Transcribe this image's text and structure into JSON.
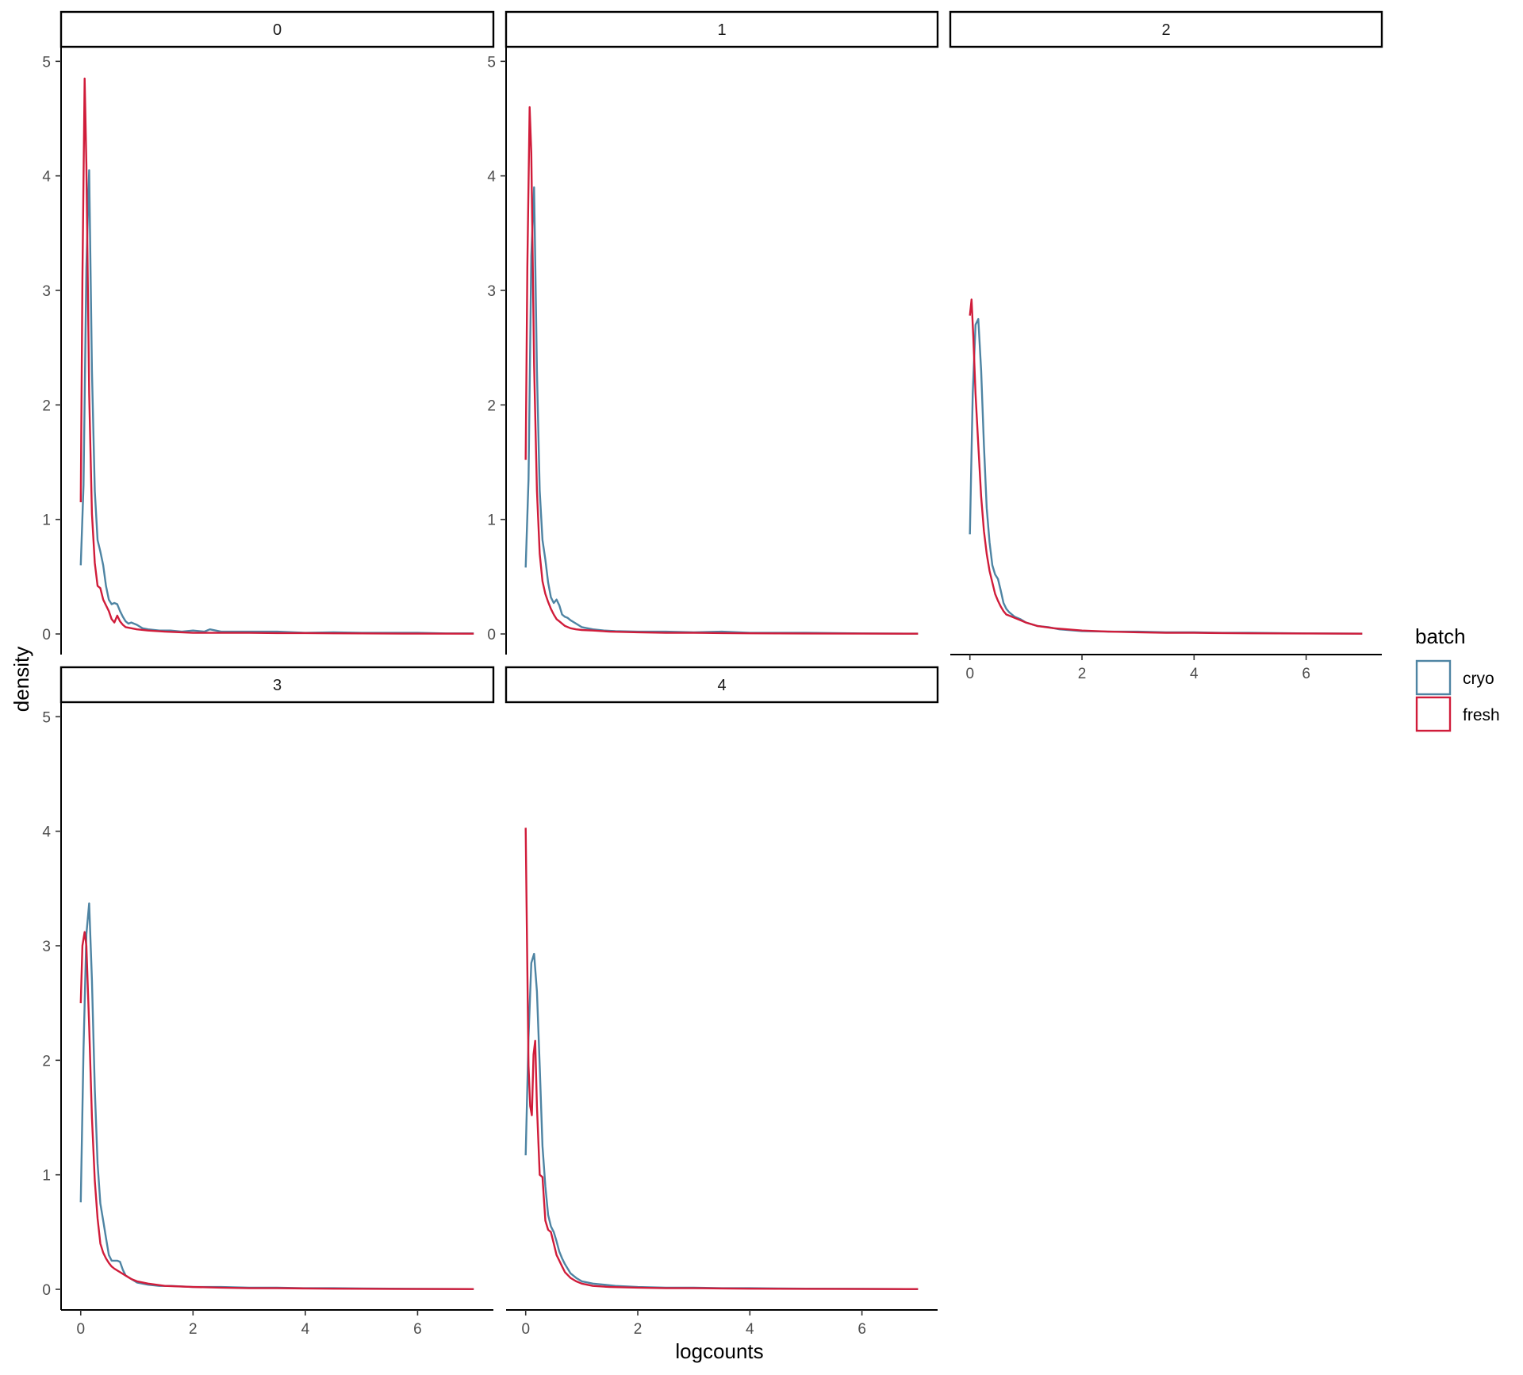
{
  "chart_data": {
    "type": "line",
    "subtype": "faceted-density",
    "xlabel": "logcounts",
    "ylabel": "density",
    "xlim": [
      -0.35,
      7.35
    ],
    "ylim": [
      -0.18,
      5.12
    ],
    "x_ticks": [
      0,
      2,
      4,
      6
    ],
    "y_ticks": [
      0,
      1,
      2,
      3,
      4,
      5
    ],
    "grid": false,
    "legend": {
      "title": "batch",
      "position": "right",
      "entries": [
        {
          "name": "cryo",
          "color": "#4e84a3"
        },
        {
          "name": "fresh",
          "color": "#d01c3a"
        }
      ]
    },
    "facets": [
      {
        "label": "0",
        "series": [
          {
            "name": "cryo",
            "x": [
              0,
              0.05,
              0.1,
              0.15,
              0.2,
              0.25,
              0.3,
              0.35,
              0.4,
              0.45,
              0.5,
              0.55,
              0.6,
              0.65,
              0.7,
              0.75,
              0.8,
              0.85,
              0.9,
              1.0,
              1.1,
              1.2,
              1.4,
              1.6,
              1.8,
              2.0,
              2.2,
              2.3,
              2.5,
              3,
              3.5,
              4,
              4.5,
              5,
              5.5,
              6,
              6.5,
              7
            ],
            "y": [
              0.6,
              1.3,
              3.2,
              4.05,
              2.3,
              1.25,
              0.82,
              0.72,
              0.6,
              0.42,
              0.3,
              0.26,
              0.27,
              0.26,
              0.2,
              0.15,
              0.11,
              0.09,
              0.1,
              0.08,
              0.05,
              0.04,
              0.03,
              0.03,
              0.02,
              0.03,
              0.02,
              0.04,
              0.02,
              0.02,
              0.02,
              0.01,
              0.015,
              0.01,
              0.01,
              0.01,
              0.005,
              0.005
            ]
          },
          {
            "name": "fresh",
            "x": [
              0,
              0.03,
              0.07,
              0.1,
              0.15,
              0.2,
              0.25,
              0.3,
              0.35,
              0.4,
              0.45,
              0.5,
              0.55,
              0.6,
              0.65,
              0.7,
              0.75,
              0.8,
              0.9,
              1.0,
              1.2,
              1.5,
              2,
              2.5,
              3,
              3.5,
              4,
              4.5,
              5,
              6,
              7
            ],
            "y": [
              1.15,
              3.1,
              4.85,
              4.1,
              2.1,
              1.05,
              0.62,
              0.42,
              0.4,
              0.3,
              0.25,
              0.2,
              0.13,
              0.1,
              0.16,
              0.11,
              0.08,
              0.06,
              0.05,
              0.04,
              0.03,
              0.02,
              0.01,
              0.01,
              0.01,
              0.008,
              0.008,
              0.006,
              0.005,
              0.003,
              0.002
            ]
          }
        ]
      },
      {
        "label": "1",
        "series": [
          {
            "name": "cryo",
            "x": [
              0,
              0.05,
              0.1,
              0.15,
              0.2,
              0.25,
              0.3,
              0.35,
              0.4,
              0.45,
              0.5,
              0.55,
              0.6,
              0.65,
              0.7,
              0.75,
              0.8,
              0.9,
              1.0,
              1.1,
              1.2,
              1.4,
              1.6,
              2.0,
              2.5,
              3,
              3.5,
              4,
              4.5,
              5,
              5.5,
              6,
              7
            ],
            "y": [
              0.58,
              1.35,
              3.3,
              3.9,
              2.3,
              1.25,
              0.82,
              0.65,
              0.45,
              0.32,
              0.27,
              0.3,
              0.25,
              0.17,
              0.15,
              0.14,
              0.12,
              0.09,
              0.06,
              0.05,
              0.04,
              0.03,
              0.025,
              0.02,
              0.02,
              0.015,
              0.02,
              0.01,
              0.01,
              0.01,
              0.008,
              0.005,
              0.003
            ]
          },
          {
            "name": "fresh",
            "x": [
              0,
              0.03,
              0.07,
              0.1,
              0.15,
              0.2,
              0.25,
              0.3,
              0.35,
              0.4,
              0.45,
              0.5,
              0.55,
              0.6,
              0.7,
              0.8,
              0.9,
              1.0,
              1.2,
              1.5,
              2,
              2.5,
              3,
              3.5,
              4,
              4.5,
              5,
              6,
              7
            ],
            "y": [
              1.52,
              3.2,
              4.6,
              4.2,
              2.35,
              1.25,
              0.7,
              0.46,
              0.35,
              0.28,
              0.22,
              0.17,
              0.13,
              0.11,
              0.07,
              0.05,
              0.04,
              0.035,
              0.03,
              0.02,
              0.015,
              0.01,
              0.01,
              0.008,
              0.006,
              0.005,
              0.004,
              0.003,
              0.002
            ]
          }
        ]
      },
      {
        "label": "2",
        "series": [
          {
            "name": "cryo",
            "x": [
              0,
              0.05,
              0.1,
              0.15,
              0.2,
              0.25,
              0.3,
              0.35,
              0.4,
              0.45,
              0.5,
              0.55,
              0.6,
              0.65,
              0.7,
              0.8,
              0.9,
              1.0,
              1.2,
              1.4,
              1.6,
              2.0,
              2.5,
              3,
              3.5,
              4,
              4.5,
              5,
              6,
              7
            ],
            "y": [
              0.87,
              2.1,
              2.7,
              2.75,
              2.3,
              1.65,
              1.1,
              0.8,
              0.6,
              0.52,
              0.48,
              0.38,
              0.27,
              0.22,
              0.19,
              0.15,
              0.13,
              0.1,
              0.07,
              0.06,
              0.04,
              0.025,
              0.02,
              0.02,
              0.015,
              0.015,
              0.01,
              0.01,
              0.005,
              0.003
            ]
          },
          {
            "name": "fresh",
            "x": [
              0,
              0.03,
              0.06,
              0.1,
              0.15,
              0.2,
              0.25,
              0.3,
              0.35,
              0.4,
              0.45,
              0.5,
              0.55,
              0.6,
              0.65,
              0.7,
              0.8,
              0.9,
              1.0,
              1.2,
              1.5,
              2,
              2.5,
              3,
              3.5,
              4,
              4.5,
              5,
              6,
              7
            ],
            "y": [
              2.78,
              2.92,
              2.6,
              2.1,
              1.65,
              1.2,
              0.9,
              0.7,
              0.55,
              0.45,
              0.35,
              0.29,
              0.24,
              0.2,
              0.17,
              0.16,
              0.14,
              0.12,
              0.1,
              0.07,
              0.05,
              0.03,
              0.02,
              0.015,
              0.01,
              0.01,
              0.008,
              0.006,
              0.004,
              0.002
            ]
          }
        ]
      },
      {
        "label": "3",
        "series": [
          {
            "name": "cryo",
            "x": [
              0,
              0.05,
              0.1,
              0.15,
              0.2,
              0.25,
              0.3,
              0.35,
              0.4,
              0.45,
              0.5,
              0.55,
              0.6,
              0.65,
              0.7,
              0.75,
              0.8,
              0.9,
              1.0,
              1.1,
              1.2,
              1.4,
              1.6,
              2.0,
              2.5,
              3,
              3.5,
              4,
              4.5,
              5,
              6,
              7
            ],
            "y": [
              0.76,
              2.1,
              3.1,
              3.37,
              2.7,
              1.75,
              1.1,
              0.75,
              0.6,
              0.45,
              0.3,
              0.25,
              0.25,
              0.25,
              0.24,
              0.17,
              0.12,
              0.09,
              0.06,
              0.05,
              0.04,
              0.03,
              0.03,
              0.02,
              0.02,
              0.015,
              0.015,
              0.01,
              0.01,
              0.008,
              0.004,
              0.002
            ]
          },
          {
            "name": "fresh",
            "x": [
              0,
              0.03,
              0.07,
              0.1,
              0.15,
              0.2,
              0.25,
              0.3,
              0.35,
              0.4,
              0.45,
              0.5,
              0.55,
              0.6,
              0.7,
              0.8,
              0.9,
              1.0,
              1.2,
              1.5,
              2,
              2.5,
              3,
              3.5,
              4,
              4.5,
              5,
              6,
              7
            ],
            "y": [
              2.5,
              3.0,
              3.12,
              3.0,
              2.3,
              1.5,
              0.95,
              0.62,
              0.4,
              0.32,
              0.27,
              0.23,
              0.2,
              0.18,
              0.15,
              0.12,
              0.09,
              0.07,
              0.05,
              0.03,
              0.02,
              0.015,
              0.01,
              0.01,
              0.008,
              0.006,
              0.005,
              0.003,
              0.002
            ]
          }
        ]
      },
      {
        "label": "4",
        "series": [
          {
            "name": "cryo",
            "x": [
              0,
              0.05,
              0.1,
              0.15,
              0.2,
              0.25,
              0.3,
              0.35,
              0.4,
              0.45,
              0.5,
              0.55,
              0.6,
              0.65,
              0.7,
              0.75,
              0.8,
              0.9,
              1.0,
              1.2,
              1.4,
              1.6,
              2.0,
              2.5,
              3,
              3.5,
              4,
              4.5,
              5,
              6,
              7
            ],
            "y": [
              1.17,
              2.2,
              2.85,
              2.93,
              2.6,
              1.95,
              1.25,
              0.9,
              0.65,
              0.55,
              0.5,
              0.42,
              0.33,
              0.27,
              0.22,
              0.18,
              0.14,
              0.1,
              0.07,
              0.05,
              0.04,
              0.03,
              0.02,
              0.015,
              0.015,
              0.01,
              0.01,
              0.008,
              0.006,
              0.004,
              0.002
            ]
          },
          {
            "name": "fresh",
            "x": [
              0,
              0.02,
              0.05,
              0.08,
              0.11,
              0.14,
              0.17,
              0.2,
              0.25,
              0.3,
              0.35,
              0.4,
              0.45,
              0.5,
              0.55,
              0.6,
              0.65,
              0.7,
              0.8,
              0.9,
              1.0,
              1.2,
              1.5,
              2,
              2.5,
              3,
              3.5,
              4,
              4.5,
              5,
              6,
              7
            ],
            "y": [
              4.03,
              3.2,
              1.95,
              1.6,
              1.52,
              2.05,
              2.17,
              1.6,
              1.0,
              0.98,
              0.6,
              0.52,
              0.5,
              0.4,
              0.3,
              0.25,
              0.2,
              0.15,
              0.1,
              0.07,
              0.05,
              0.03,
              0.02,
              0.015,
              0.01,
              0.01,
              0.008,
              0.006,
              0.005,
              0.004,
              0.003,
              0.002
            ]
          }
        ]
      }
    ]
  }
}
